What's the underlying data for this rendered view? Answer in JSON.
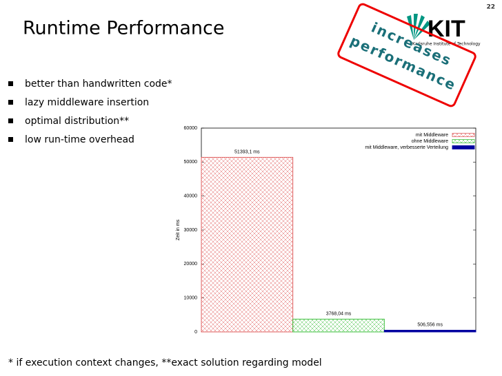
{
  "slide": {
    "page_number": "22",
    "title": "Runtime Performance",
    "bullets": [
      "better than handwritten code*",
      "lazy middleware insertion",
      "optimal distribution**",
      "low run-time overhead"
    ],
    "stamp": [
      "increases",
      "performance"
    ],
    "logo": {
      "mark": "KIT",
      "caption": "Karlsruhe Institute of Technology"
    },
    "footnote": "*  if execution context changes, **exact solution regarding model"
  },
  "chart_data": {
    "type": "bar",
    "ylabel": "Zeit in ms",
    "ylim": [
      0,
      60000
    ],
    "yticks": [
      0,
      10000,
      20000,
      30000,
      40000,
      50000,
      60000
    ],
    "series": [
      {
        "name": "mit Middleware",
        "color": "#e06060",
        "pattern": "hatch",
        "values": [
          51393.1
        ],
        "value_labels": [
          "51393,1 ms"
        ]
      },
      {
        "name": "ohne Middleware",
        "color": "#40c040",
        "pattern": "hatch",
        "values": [
          3768.04
        ],
        "value_labels": [
          "3768,04 ms"
        ]
      },
      {
        "name": "mit Middleware, verbesserte Verteilung",
        "color": "#0000a0",
        "pattern": "solid",
        "values": [
          506.556
        ],
        "value_labels": [
          "506,556 ms"
        ]
      }
    ]
  }
}
